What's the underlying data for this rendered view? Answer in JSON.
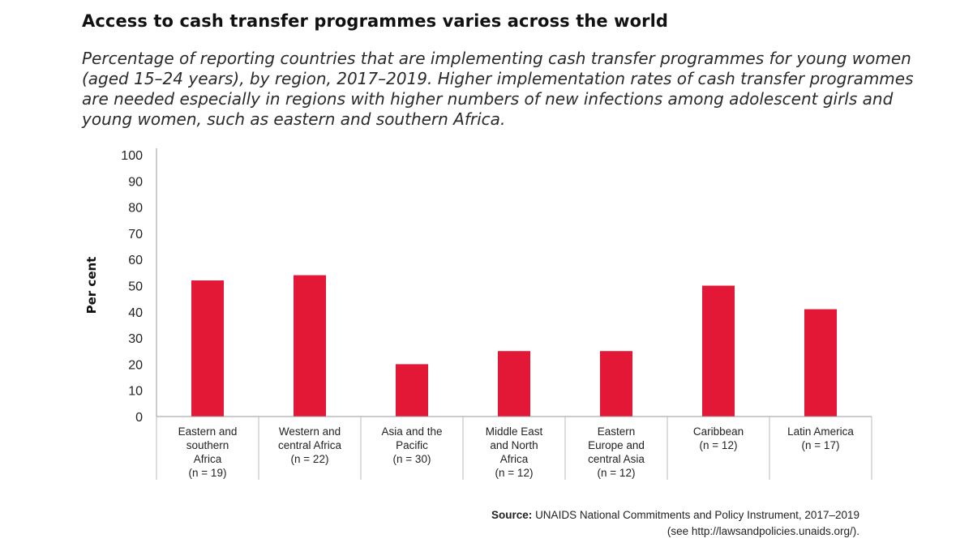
{
  "title": "Access to cash transfer programmes varies across the world",
  "subtitle": "Percentage of reporting countries that are implementing cash transfer programmes for young women (aged 15–24 years), by region, 2017–2019. Higher implementation rates of cash transfer programmes are needed especially in regions with higher numbers of new infections among adolescent girls and young women, such as eastern and southern Africa.",
  "source": {
    "label": "Source:",
    "line1": "UNAIDS National Commitments and Policy Instrument, 2017–2019",
    "line2": "(see http://lawsandpolicies.unaids.org/)."
  },
  "chart_data": {
    "type": "bar",
    "ylabel": "Per cent",
    "xlabel": "",
    "ylim": [
      0,
      100
    ],
    "yticks": [
      0,
      10,
      20,
      30,
      40,
      50,
      60,
      70,
      80,
      90,
      100
    ],
    "grid": false,
    "bar_color": "#e31837",
    "categories": [
      [
        "Eastern and",
        "southern",
        "Africa",
        "(n = 19)"
      ],
      [
        "Western and",
        "central Africa",
        "(n = 22)"
      ],
      [
        "Asia and the",
        "Pacific",
        "(n = 30)"
      ],
      [
        "Middle East",
        "and North",
        "Africa",
        "(n = 12)"
      ],
      [
        "Eastern",
        "Europe and",
        "central Asia",
        "(n = 12)"
      ],
      [
        "Caribbean",
        "(n = 12)"
      ],
      [
        "Latin America",
        "(n = 17)"
      ]
    ],
    "values": [
      52,
      54,
      20,
      25,
      25,
      50,
      41
    ]
  }
}
